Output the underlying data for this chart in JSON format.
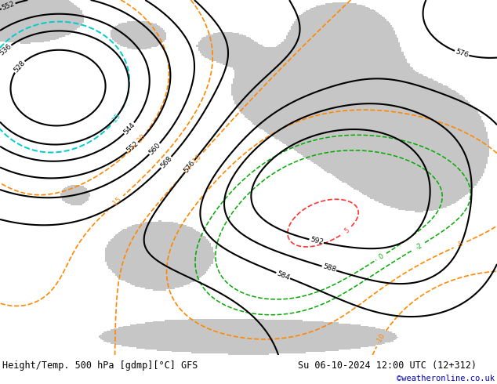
{
  "title_left": "Height/Temp. 500 hPa [gdmp][°C] GFS",
  "title_right": "Su 06-10-2024 12:00 UTC (12+312)",
  "credit": "©weatheronline.co.uk",
  "bg_green": "#c8e6a0",
  "land_gray": "#c0c0c0",
  "white": "#ffffff",
  "black": "#000000",
  "cyan_temp": "#00cccc",
  "green_temp": "#00aa00",
  "orange_temp": "#ff8800",
  "red_temp": "#ff3333",
  "credit_color": "#0000bb",
  "fig_width": 6.34,
  "fig_height": 4.9,
  "dpi": 100
}
